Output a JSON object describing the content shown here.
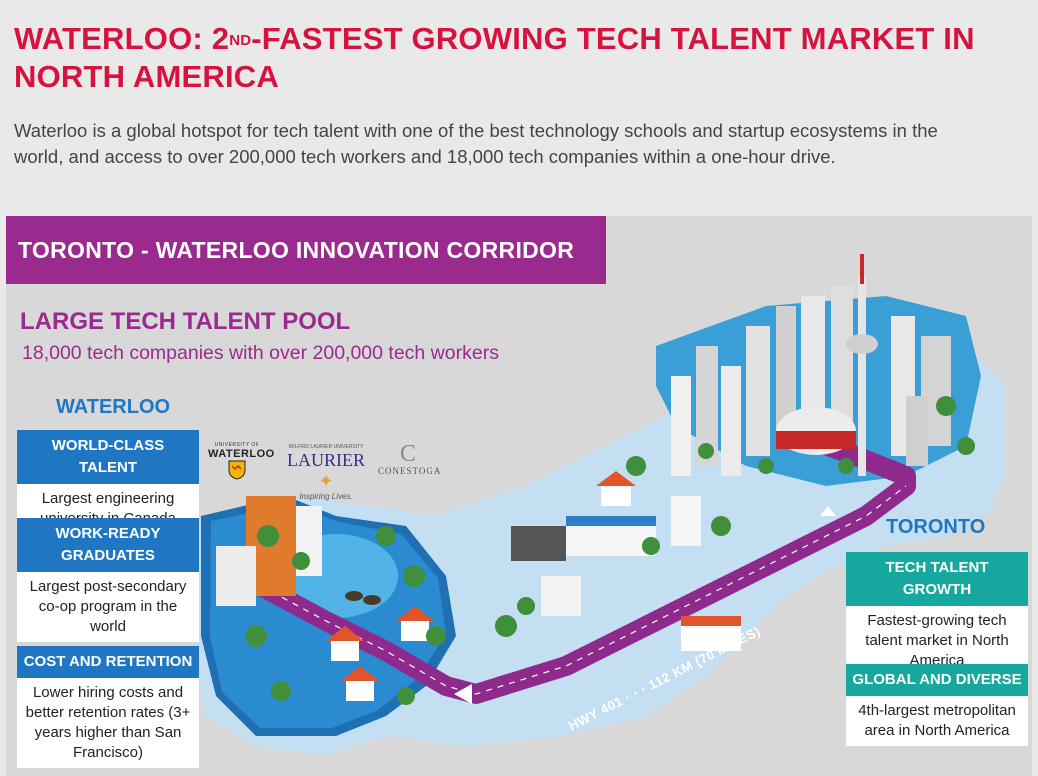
{
  "headline": {
    "part1": "WATERLOO: 2",
    "superscript": "ND",
    "part2": "-FASTEST GROWING TECH TALENT MARKET IN NORTH AMERICA"
  },
  "intro": "Waterloo is a global hotspot for tech talent with one of the best technology schools and startup ecosystems in the world, and access to over 200,000 tech workers and 18,000 tech companies within a one-hour drive.",
  "corridor": {
    "banner": "TORONTO - WATERLOO INNOVATION CORRIDOR",
    "pool_title": "LARGE TECH TALENT POOL",
    "pool_subtitle": "18,000 tech companies with over 200,000 tech workers",
    "highway": {
      "name": "HWY 401",
      "distance": "112 KM (70 MILES)"
    }
  },
  "waterloo": {
    "label": "WATERLOO",
    "cards": [
      {
        "title": "WORLD-CLASS TALENT",
        "text": "Largest engineering university in Canada"
      },
      {
        "title": "WORK-READY GRADUATES",
        "text": "Largest post-secondary co-op program in the world"
      },
      {
        "title": "COST AND RETENTION",
        "text": "Lower hiring costs and better retention rates (3+ years higher than San Francisco)"
      }
    ]
  },
  "toronto": {
    "label": "TORONTO",
    "cards": [
      {
        "title": "TECH TALENT GROWTH",
        "text": "Fastest-growing tech talent market in North America"
      },
      {
        "title": "GLOBAL AND DIVERSE",
        "text": "4th-largest metropolitan area in North America"
      }
    ]
  },
  "logos": {
    "uwaterloo_small": "UNIVERSITY OF",
    "uwaterloo_main": "WATERLOO",
    "laurier_small": "WILFRID LAURIER UNIVERSITY",
    "laurier_main": "LAURIER",
    "laurier_tagline": "Inspiring Lives.",
    "conestoga_mark": "C",
    "conestoga_main": "CONESTOGA"
  },
  "colors": {
    "headline_red": "#d6133f",
    "corridor_purple": "#9b2a8e",
    "waterloo_blue": "#1f77c4",
    "toronto_teal": "#16a79e",
    "highway_purple": "#8e2a8c",
    "land_blue": "#c5dff2",
    "water_blue": "#52b4e6"
  }
}
